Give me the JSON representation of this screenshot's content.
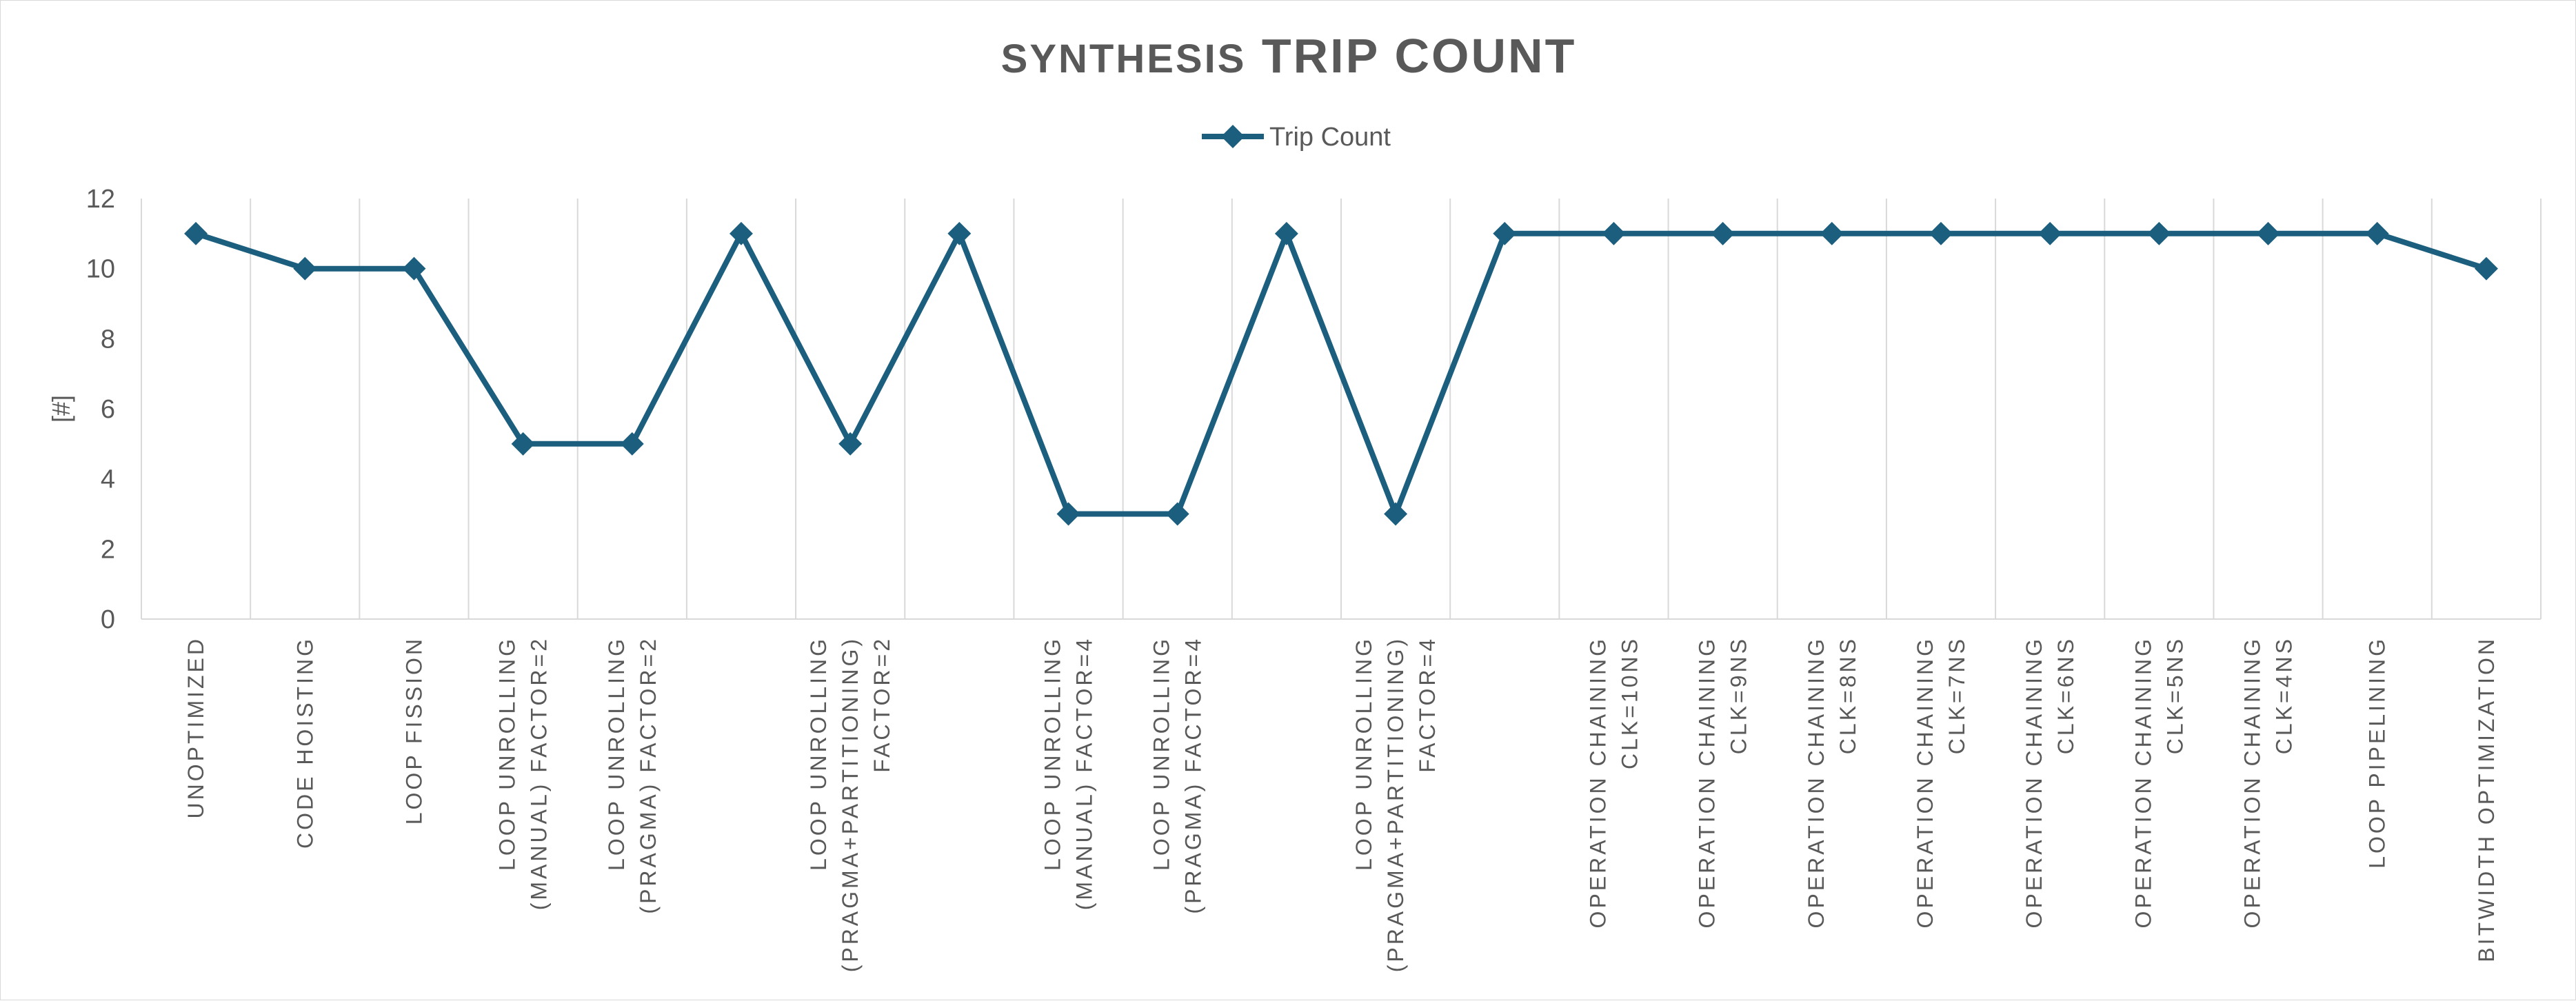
{
  "chart_data": {
    "type": "line",
    "title_prefix": "SYNTHESIS",
    "title_main": "TRIP COUNT",
    "xlabel": "",
    "ylabel": "[#]",
    "ylim": [
      0,
      12
    ],
    "yticks": [
      0,
      2,
      4,
      6,
      8,
      10,
      12
    ],
    "grid": "vertical",
    "legend_position": "top-center",
    "color": "#1B5E7E",
    "categories": [
      [
        "UNOPTIMIZED"
      ],
      [
        "CODE HOISTING"
      ],
      [
        "LOOP FISSION"
      ],
      [
        "LOOP UNROLLING",
        "(MANUAL) FACTOR=2"
      ],
      [
        "LOOP UNROLLING",
        "(PRAGMA) FACTOR=2"
      ],
      [],
      [
        "LOOP UNROLLING",
        "(PRAGMA+PARTITIONING)",
        "FACTOR=2"
      ],
      [],
      [
        "LOOP UNROLLING",
        "(MANUAL) FACTOR=4"
      ],
      [
        "LOOP UNROLLING",
        "(PRAGMA) FACTOR=4"
      ],
      [],
      [
        "LOOP UNROLLING",
        "(PRAGMA+PARTITIONING)",
        "FACTOR=4"
      ],
      [],
      [
        "OPERATION CHAINING",
        "CLK=10NS"
      ],
      [
        "OPERATION CHAINING",
        "CLK=9NS"
      ],
      [
        "OPERATION CHAINING",
        "CLK=8NS"
      ],
      [
        "OPERATION CHAINING",
        "CLK=7NS"
      ],
      [
        "OPERATION CHAINING",
        "CLK=6NS"
      ],
      [
        "OPERATION CHAINING",
        "CLK=5NS"
      ],
      [
        "OPERATION CHAINING",
        "CLK=4NS"
      ],
      [
        "LOOP PIPELINING"
      ],
      [
        "BITWIDTH OPTIMIZATION"
      ]
    ],
    "series": [
      {
        "name": "Trip Count",
        "values": [
          11,
          10,
          10,
          5,
          5,
          11,
          5,
          11,
          3,
          3,
          11,
          3,
          11,
          11,
          11,
          11,
          11,
          11,
          11,
          11,
          11,
          10
        ]
      }
    ]
  }
}
